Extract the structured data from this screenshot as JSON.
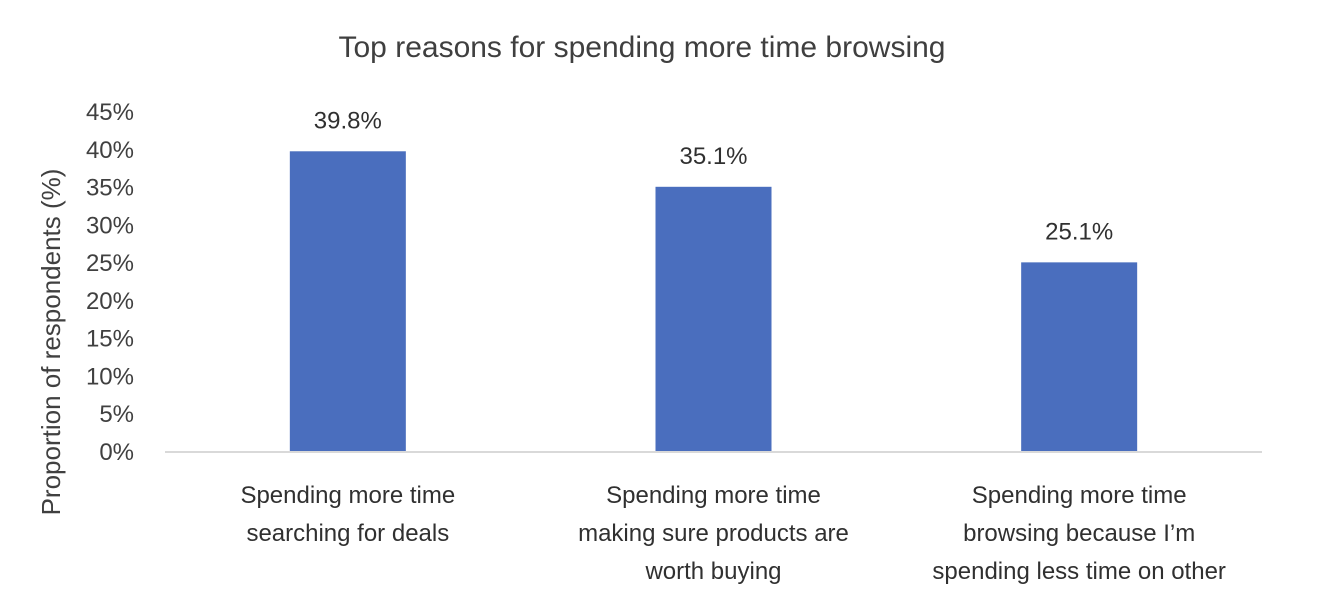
{
  "chart_data": {
    "type": "bar",
    "title": "Top reasons for spending more time browsing",
    "ylabel": "Proportion of respondents (%)",
    "xlabel": "",
    "ylim": [
      0,
      45
    ],
    "yticks": [
      "0%",
      "5%",
      "10%",
      "15%",
      "20%",
      "25%",
      "30%",
      "35%",
      "40%",
      "45%"
    ],
    "categories": [
      "Spending more time searching for deals",
      "Spending more time making sure products are worth buying",
      "Spending more time browsing because I’m spending less time on other"
    ],
    "category_lines": [
      [
        "Spending more time",
        "searching for deals"
      ],
      [
        "Spending more time",
        "making sure products are",
        "worth buying"
      ],
      [
        "Spending more time",
        "browsing because I’m",
        "spending less time on other"
      ]
    ],
    "values": [
      39.8,
      35.1,
      25.1
    ],
    "data_labels": [
      "39.8%",
      "35.1%",
      "25.1%"
    ],
    "grid": false,
    "legend": "none",
    "colors": {
      "bar": "#4a6ebe",
      "axis": "#d9d9d9"
    }
  }
}
